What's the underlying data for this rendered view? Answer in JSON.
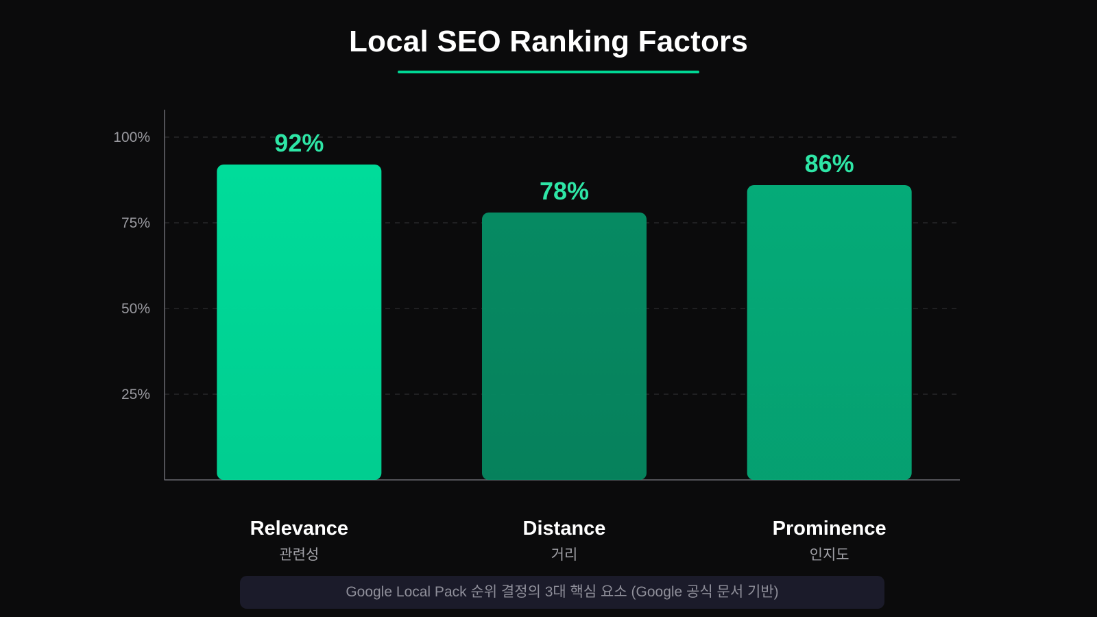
{
  "chart_data": {
    "type": "bar",
    "title": "Local SEO Ranking Factors",
    "categories": [
      "Relevance",
      "Distance",
      "Prominence"
    ],
    "subcategories": [
      "관련성",
      "거리",
      "인지도"
    ],
    "values": [
      92,
      78,
      86
    ],
    "value_labels": [
      "92%",
      "78%",
      "86%"
    ],
    "bar_colors": [
      "#00dc9a",
      "#068a62",
      "#05ab78"
    ],
    "ylim": [
      0,
      108
    ],
    "yticks": [
      25,
      50,
      75,
      100
    ],
    "ytick_labels": [
      "25%",
      "50%",
      "75%",
      "100%"
    ],
    "grid": true,
    "accent_color": "#2ee6a6",
    "xlabel": "",
    "ylabel": ""
  },
  "footnote": "Google Local Pack 순위 결정의 3대 핵심 요소 (Google 공식 문서 기반)"
}
